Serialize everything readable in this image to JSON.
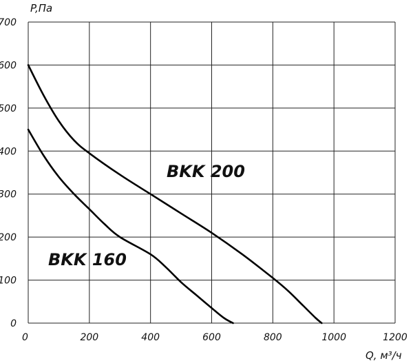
{
  "chart_data": {
    "type": "line",
    "ylabel": "P,Па",
    "xlabel": "Q, м³/ч",
    "xlim": [
      0,
      1200
    ],
    "ylim": [
      0,
      700
    ],
    "x_ticks": [
      0,
      200,
      400,
      600,
      800,
      1000,
      1200
    ],
    "y_ticks": [
      0,
      100,
      200,
      300,
      400,
      500,
      600,
      700
    ],
    "grid": true,
    "legend": "none",
    "series": [
      {
        "name": "BKK 200",
        "x": [
          0,
          50,
          100,
          150,
          200,
          300,
          400,
          500,
          600,
          700,
          800,
          850,
          900,
          940,
          960
        ],
        "y": [
          600,
          530,
          470,
          425,
          395,
          345,
          300,
          255,
          210,
          160,
          105,
          75,
          40,
          12,
          0
        ]
      },
      {
        "name": "BKK 160",
        "x": [
          0,
          50,
          100,
          150,
          200,
          250,
          300,
          400,
          450,
          500,
          550,
          600,
          640,
          670
        ],
        "y": [
          450,
          390,
          340,
          300,
          265,
          230,
          200,
          160,
          130,
          95,
          65,
          35,
          12,
          0
        ]
      }
    ]
  }
}
